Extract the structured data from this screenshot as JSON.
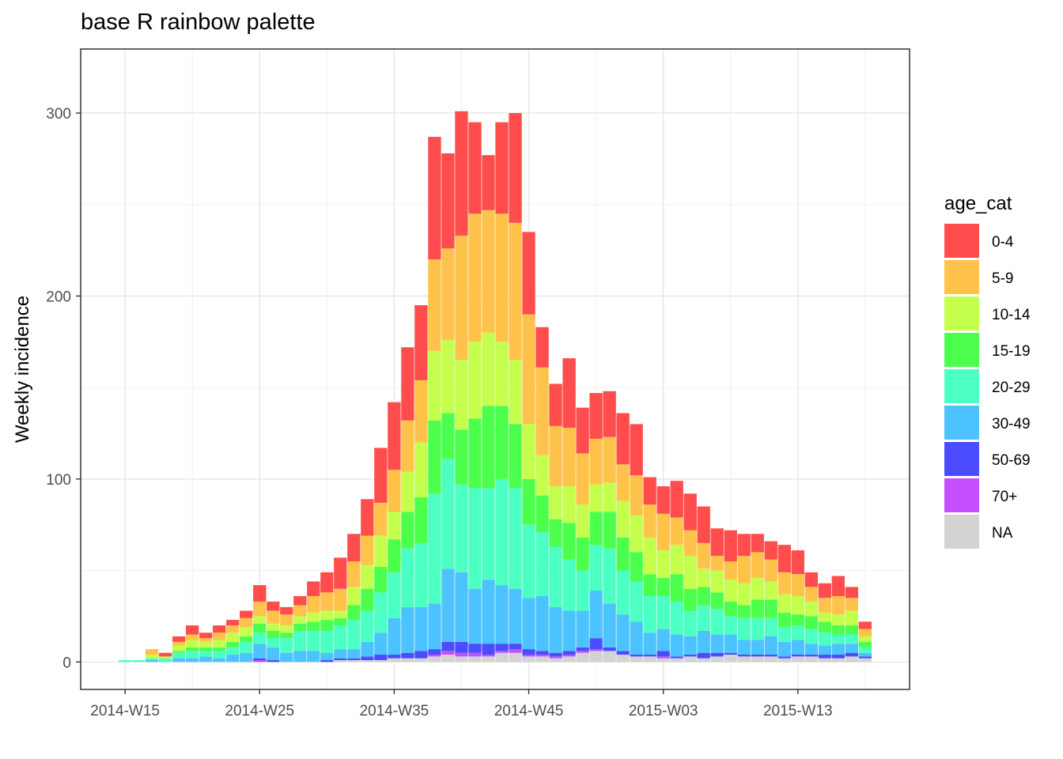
{
  "chart_data": {
    "type": "bar",
    "stacked": true,
    "title": "base R rainbow palette",
    "xlabel": "",
    "ylabel": "Weekly incidence",
    "ylim": [
      -15,
      335
    ],
    "y_ticks": [
      0,
      100,
      200,
      300
    ],
    "x_tick_labels": [
      "2014-W15",
      "2014-W25",
      "2014-W35",
      "2014-W45",
      "2015-W03",
      "2015-W13"
    ],
    "x_tick_positions": [
      0,
      10,
      20,
      30,
      40,
      50
    ],
    "x_range": [
      -3.3,
      58.3
    ],
    "grid": true,
    "legend": {
      "title": "age_cat",
      "placement": "right"
    },
    "categories": [
      "2014-W15",
      "2014-W16",
      "2014-W17",
      "2014-W18",
      "2014-W19",
      "2014-W20",
      "2014-W21",
      "2014-W22",
      "2014-W23",
      "2014-W24",
      "2014-W25",
      "2014-W26",
      "2014-W27",
      "2014-W28",
      "2014-W29",
      "2014-W30",
      "2014-W31",
      "2014-W32",
      "2014-W33",
      "2014-W34",
      "2014-W35",
      "2014-W36",
      "2014-W37",
      "2014-W38",
      "2014-W39",
      "2014-W40",
      "2014-W41",
      "2014-W42",
      "2014-W43",
      "2014-W44",
      "2014-W45",
      "2014-W46",
      "2014-W47",
      "2014-W48",
      "2014-W49",
      "2014-W50",
      "2014-W51",
      "2014-W52",
      "2015-W01",
      "2015-W02",
      "2015-W03",
      "2015-W04",
      "2015-W05",
      "2015-W06",
      "2015-W07",
      "2015-W08",
      "2015-W09",
      "2015-W10",
      "2015-W11",
      "2015-W12",
      "2015-W13",
      "2015-W14",
      "2015-W15",
      "2015-W16",
      "2015-W17",
      "2015-W18"
    ],
    "series": [
      {
        "name": "NA",
        "color": "#d3d3d3",
        "values": [
          0,
          0,
          0,
          0,
          0,
          0,
          0,
          0,
          0,
          0,
          0,
          0,
          0,
          0,
          0,
          0,
          1,
          1,
          1,
          1,
          2,
          2,
          2,
          3,
          4,
          3,
          3,
          3,
          5,
          5,
          3,
          3,
          2,
          3,
          5,
          6,
          6,
          4,
          3,
          3,
          2,
          2,
          3,
          2,
          3,
          4,
          3,
          3,
          3,
          2,
          3,
          3,
          2,
          2,
          3,
          2
        ]
      },
      {
        "name": "70+",
        "color": "#c54fff",
        "values": [
          0,
          0,
          0,
          0,
          0,
          0,
          0,
          0,
          0,
          0,
          1,
          0,
          0,
          0,
          0,
          0,
          0,
          0,
          0,
          0,
          0,
          0,
          0,
          1,
          2,
          2,
          2,
          1,
          1,
          2,
          1,
          1,
          1,
          1,
          1,
          1,
          0,
          0,
          0,
          0,
          1,
          0,
          0,
          0,
          0,
          0,
          0,
          0,
          0,
          0,
          0,
          0,
          0,
          0,
          0,
          0
        ]
      },
      {
        "name": "50-69",
        "color": "#4c4cff",
        "values": [
          0,
          0,
          0,
          0,
          0,
          0,
          0,
          0,
          0,
          0,
          1,
          1,
          0,
          0,
          0,
          1,
          1,
          1,
          2,
          3,
          2,
          3,
          4,
          3,
          5,
          6,
          5,
          6,
          4,
          3,
          3,
          2,
          2,
          2,
          2,
          6,
          2,
          2,
          1,
          1,
          3,
          1,
          1,
          3,
          2,
          1,
          1,
          1,
          1,
          1,
          1,
          1,
          2,
          2,
          2,
          1
        ]
      },
      {
        "name": "30-49",
        "color": "#4cc3ff",
        "values": [
          0,
          0,
          1,
          0,
          2,
          2,
          3,
          2,
          4,
          5,
          8,
          7,
          5,
          6,
          6,
          4,
          5,
          5,
          8,
          12,
          20,
          25,
          24,
          25,
          40,
          38,
          30,
          35,
          32,
          30,
          28,
          30,
          25,
          22,
          20,
          26,
          24,
          20,
          18,
          12,
          12,
          12,
          10,
          12,
          10,
          10,
          8,
          8,
          10,
          8,
          8,
          6,
          5,
          6,
          5,
          2
        ]
      },
      {
        "name": "20-29",
        "color": "#4cffc3",
        "values": [
          1,
          1,
          1,
          2,
          3,
          4,
          3,
          4,
          4,
          6,
          6,
          5,
          8,
          11,
          11,
          12,
          13,
          16,
          17,
          22,
          25,
          32,
          35,
          60,
          60,
          48,
          55,
          50,
          58,
          55,
          40,
          35,
          33,
          28,
          22,
          25,
          30,
          24,
          22,
          20,
          18,
          18,
          14,
          14,
          14,
          10,
          12,
          12,
          10,
          8,
          8,
          8,
          7,
          5,
          5,
          3
        ]
      },
      {
        "name": "15-19",
        "color": "#4cff4c",
        "values": [
          0,
          0,
          0,
          0,
          1,
          2,
          2,
          2,
          3,
          3,
          5,
          4,
          3,
          4,
          5,
          6,
          4,
          8,
          12,
          14,
          18,
          20,
          25,
          40,
          25,
          30,
          38,
          45,
          40,
          35,
          25,
          20,
          15,
          20,
          18,
          18,
          20,
          18,
          16,
          12,
          10,
          15,
          12,
          10,
          9,
          8,
          7,
          10,
          10,
          8,
          6,
          7,
          6,
          5,
          5,
          3
        ]
      },
      {
        "name": "10-14",
        "color": "#c3ff4c",
        "values": [
          0,
          0,
          2,
          1,
          3,
          4,
          3,
          4,
          5,
          5,
          4,
          4,
          4,
          4,
          5,
          5,
          4,
          10,
          13,
          17,
          15,
          22,
          30,
          38,
          40,
          38,
          42,
          40,
          35,
          35,
          30,
          22,
          18,
          20,
          18,
          15,
          16,
          20,
          20,
          20,
          15,
          16,
          18,
          10,
          12,
          12,
          12,
          12,
          10,
          10,
          10,
          8,
          5,
          6,
          8,
          3
        ]
      },
      {
        "name": "5-9",
        "color": "#ffc34c",
        "values": [
          0,
          0,
          3,
          0,
          2,
          3,
          2,
          4,
          4,
          5,
          8,
          7,
          6,
          6,
          9,
          10,
          12,
          14,
          16,
          18,
          23,
          28,
          34,
          50,
          50,
          68,
          70,
          67,
          70,
          75,
          60,
          48,
          33,
          32,
          28,
          25,
          25,
          20,
          22,
          18,
          20,
          15,
          14,
          14,
          8,
          10,
          15,
          14,
          12,
          12,
          12,
          8,
          8,
          10,
          7,
          4
        ]
      },
      {
        "name": "0-4",
        "color": "#ff4c4c",
        "values": [
          0,
          0,
          0,
          2,
          3,
          5,
          3,
          4,
          3,
          4,
          9,
          5,
          4,
          5,
          8,
          11,
          17,
          15,
          20,
          30,
          37,
          40,
          41,
          67,
          52,
          68,
          50,
          30,
          50,
          60,
          45,
          22,
          23,
          38,
          25,
          25,
          25,
          28,
          28,
          15,
          15,
          20,
          20,
          20,
          15,
          17,
          12,
          10,
          10,
          15,
          13,
          8,
          8,
          11,
          6,
          4
        ]
      }
    ]
  }
}
